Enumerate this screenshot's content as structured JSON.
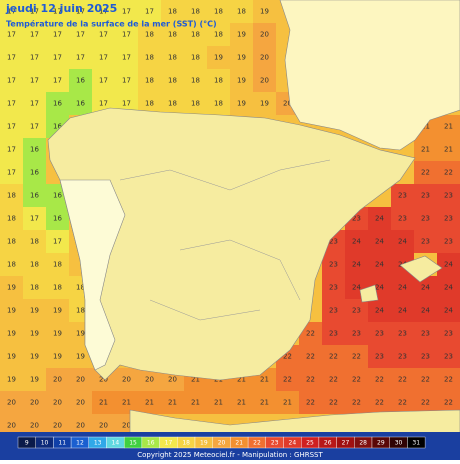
{
  "header": {
    "title": "jeudi 12 juin 2025",
    "subtitle": "Température de la surface de la mer (SST) (°C)"
  },
  "grid": {
    "rows": [
      [
        17,
        17,
        17,
        17,
        17,
        17,
        17,
        18,
        18,
        18,
        18,
        19,
        null,
        null,
        null,
        null,
        null,
        null,
        null,
        null
      ],
      [
        17,
        17,
        17,
        17,
        17,
        17,
        18,
        18,
        18,
        18,
        19,
        20,
        null,
        null,
        null,
        null,
        null,
        null,
        null,
        null
      ],
      [
        17,
        17,
        17,
        17,
        17,
        17,
        18,
        18,
        18,
        19,
        19,
        20,
        null,
        null,
        null,
        null,
        null,
        null,
        null,
        null
      ],
      [
        17,
        17,
        17,
        16,
        17,
        17,
        18,
        18,
        18,
        18,
        19,
        20,
        null,
        null,
        null,
        null,
        null,
        null,
        null,
        null
      ],
      [
        17,
        17,
        16,
        16,
        17,
        17,
        18,
        18,
        18,
        18,
        19,
        19,
        20,
        null,
        null,
        null,
        null,
        null,
        null,
        null
      ],
      [
        17,
        17,
        16,
        null,
        null,
        null,
        null,
        null,
        null,
        null,
        null,
        null,
        null,
        null,
        null,
        null,
        null,
        null,
        21,
        21
      ],
      [
        17,
        16,
        null,
        null,
        null,
        null,
        null,
        null,
        null,
        null,
        null,
        null,
        null,
        null,
        null,
        null,
        null,
        null,
        21,
        21
      ],
      [
        17,
        16,
        null,
        null,
        null,
        null,
        null,
        null,
        null,
        null,
        null,
        null,
        null,
        null,
        null,
        null,
        null,
        null,
        22,
        22
      ],
      [
        18,
        16,
        16,
        null,
        null,
        null,
        null,
        null,
        null,
        null,
        null,
        null,
        null,
        null,
        null,
        null,
        null,
        23,
        23,
        23
      ],
      [
        18,
        17,
        16,
        null,
        null,
        null,
        null,
        null,
        null,
        null,
        null,
        null,
        null,
        null,
        null,
        23,
        24,
        23,
        23,
        23
      ],
      [
        18,
        18,
        17,
        null,
        null,
        null,
        null,
        null,
        null,
        null,
        null,
        null,
        null,
        null,
        23,
        24,
        24,
        24,
        23,
        23
      ],
      [
        18,
        18,
        18,
        null,
        null,
        null,
        null,
        null,
        null,
        null,
        null,
        null,
        null,
        null,
        23,
        24,
        24,
        24,
        null,
        24
      ],
      [
        19,
        18,
        18,
        18,
        null,
        null,
        null,
        null,
        null,
        null,
        null,
        null,
        null,
        null,
        23,
        24,
        24,
        24,
        24,
        24
      ],
      [
        19,
        19,
        19,
        18,
        null,
        null,
        null,
        null,
        null,
        null,
        null,
        null,
        null,
        null,
        23,
        23,
        24,
        24,
        24,
        24
      ],
      [
        19,
        19,
        19,
        19,
        null,
        null,
        null,
        null,
        null,
        null,
        null,
        null,
        null,
        22,
        23,
        23,
        23,
        23,
        23,
        23
      ],
      [
        19,
        19,
        19,
        19,
        null,
        null,
        null,
        null,
        null,
        null,
        null,
        null,
        22,
        22,
        22,
        22,
        23,
        23,
        23,
        23
      ],
      [
        19,
        19,
        20,
        20,
        20,
        20,
        20,
        20,
        21,
        21,
        21,
        21,
        22,
        22,
        22,
        22,
        22,
        22,
        22,
        22
      ],
      [
        20,
        20,
        20,
        20,
        21,
        21,
        21,
        21,
        21,
        21,
        21,
        21,
        21,
        22,
        22,
        22,
        22,
        22,
        22,
        22
      ],
      [
        20,
        20,
        20,
        20,
        20,
        20,
        null,
        null,
        null,
        null,
        null,
        null,
        null,
        null,
        null,
        null,
        null,
        null,
        null,
        null
      ]
    ]
  },
  "color_scale": {
    "ticks": [
      9,
      10,
      11,
      12,
      13,
      14,
      15,
      16,
      17,
      18,
      19,
      20,
      21,
      22,
      23,
      24,
      25,
      26,
      27,
      28,
      29,
      30,
      31
    ],
    "colors": [
      "#0a1a4a",
      "#0d2a7a",
      "#1040a8",
      "#1a5fd0",
      "#30a8e8",
      "#60d8e0",
      "#40d040",
      "#a8e848",
      "#f2e84c",
      "#f6d444",
      "#f6c040",
      "#f5a640",
      "#f39030",
      "#f07030",
      "#e84a30",
      "#e03a2a",
      "#d02020",
      "#b81818",
      "#a01010",
      "#801010",
      "#5a0808",
      "#300404",
      "#000000"
    ]
  },
  "footer": {
    "copyright": "Copyright 2025 Meteociel.fr - Manipulation : GHRSST"
  }
}
